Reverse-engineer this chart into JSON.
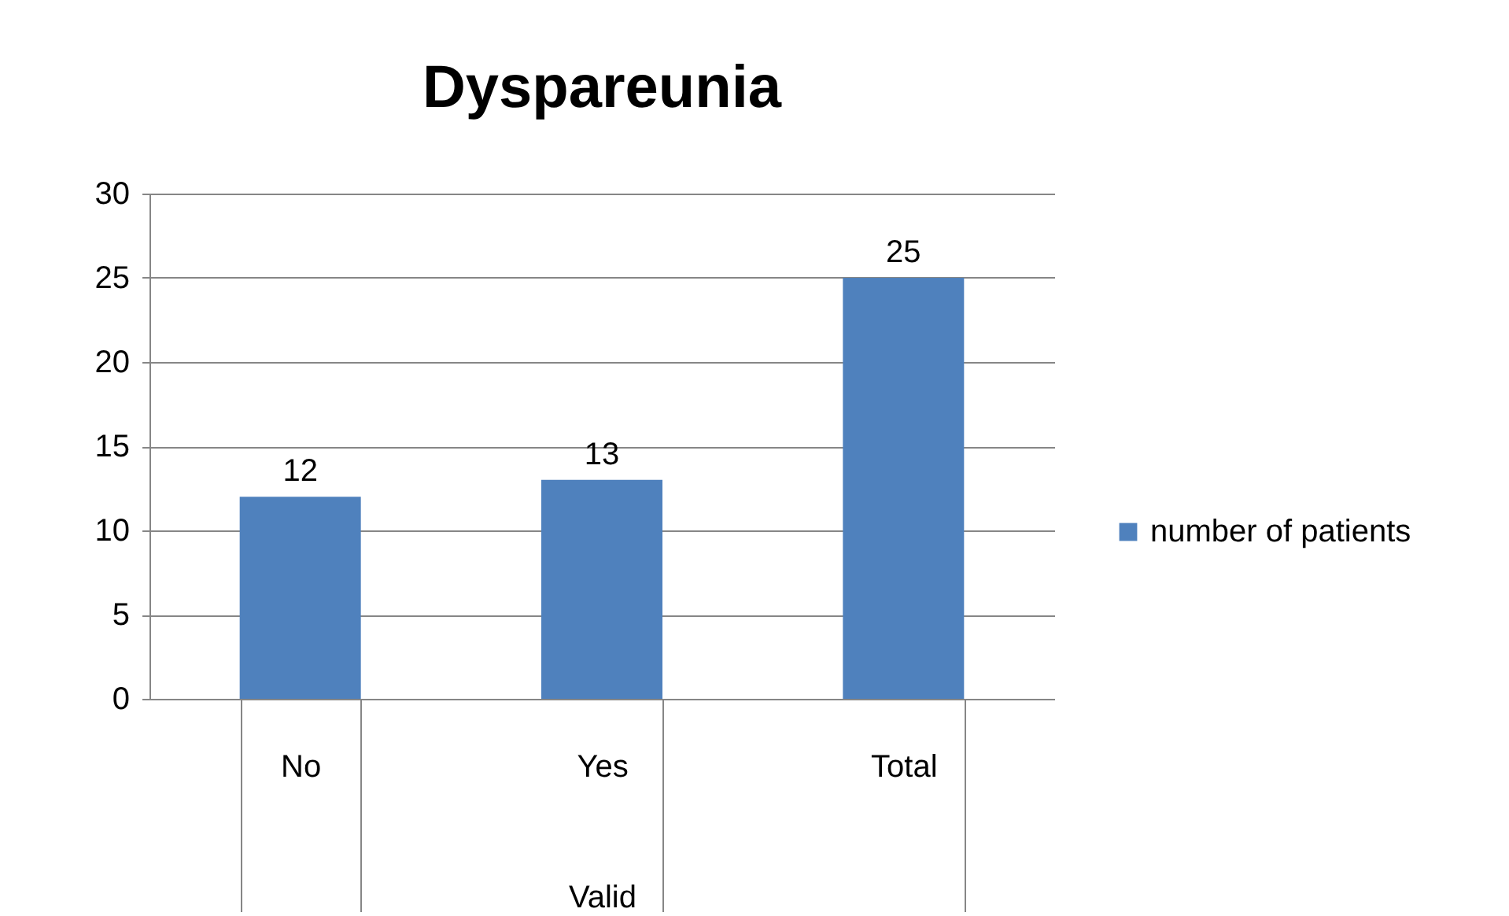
{
  "chart_data": {
    "type": "bar",
    "title": "Dyspareunia",
    "xlabel": "Valid",
    "categories": [
      "No",
      "Yes",
      "Total"
    ],
    "series": [
      {
        "name": "number of patients",
        "color": "#4f81bd",
        "values": [
          12,
          13,
          25
        ]
      }
    ],
    "ylim": [
      0,
      30
    ],
    "yticks": [
      0,
      5,
      10,
      15,
      20,
      25,
      30
    ],
    "grid": "y",
    "legend": "right",
    "data_labels": true
  }
}
